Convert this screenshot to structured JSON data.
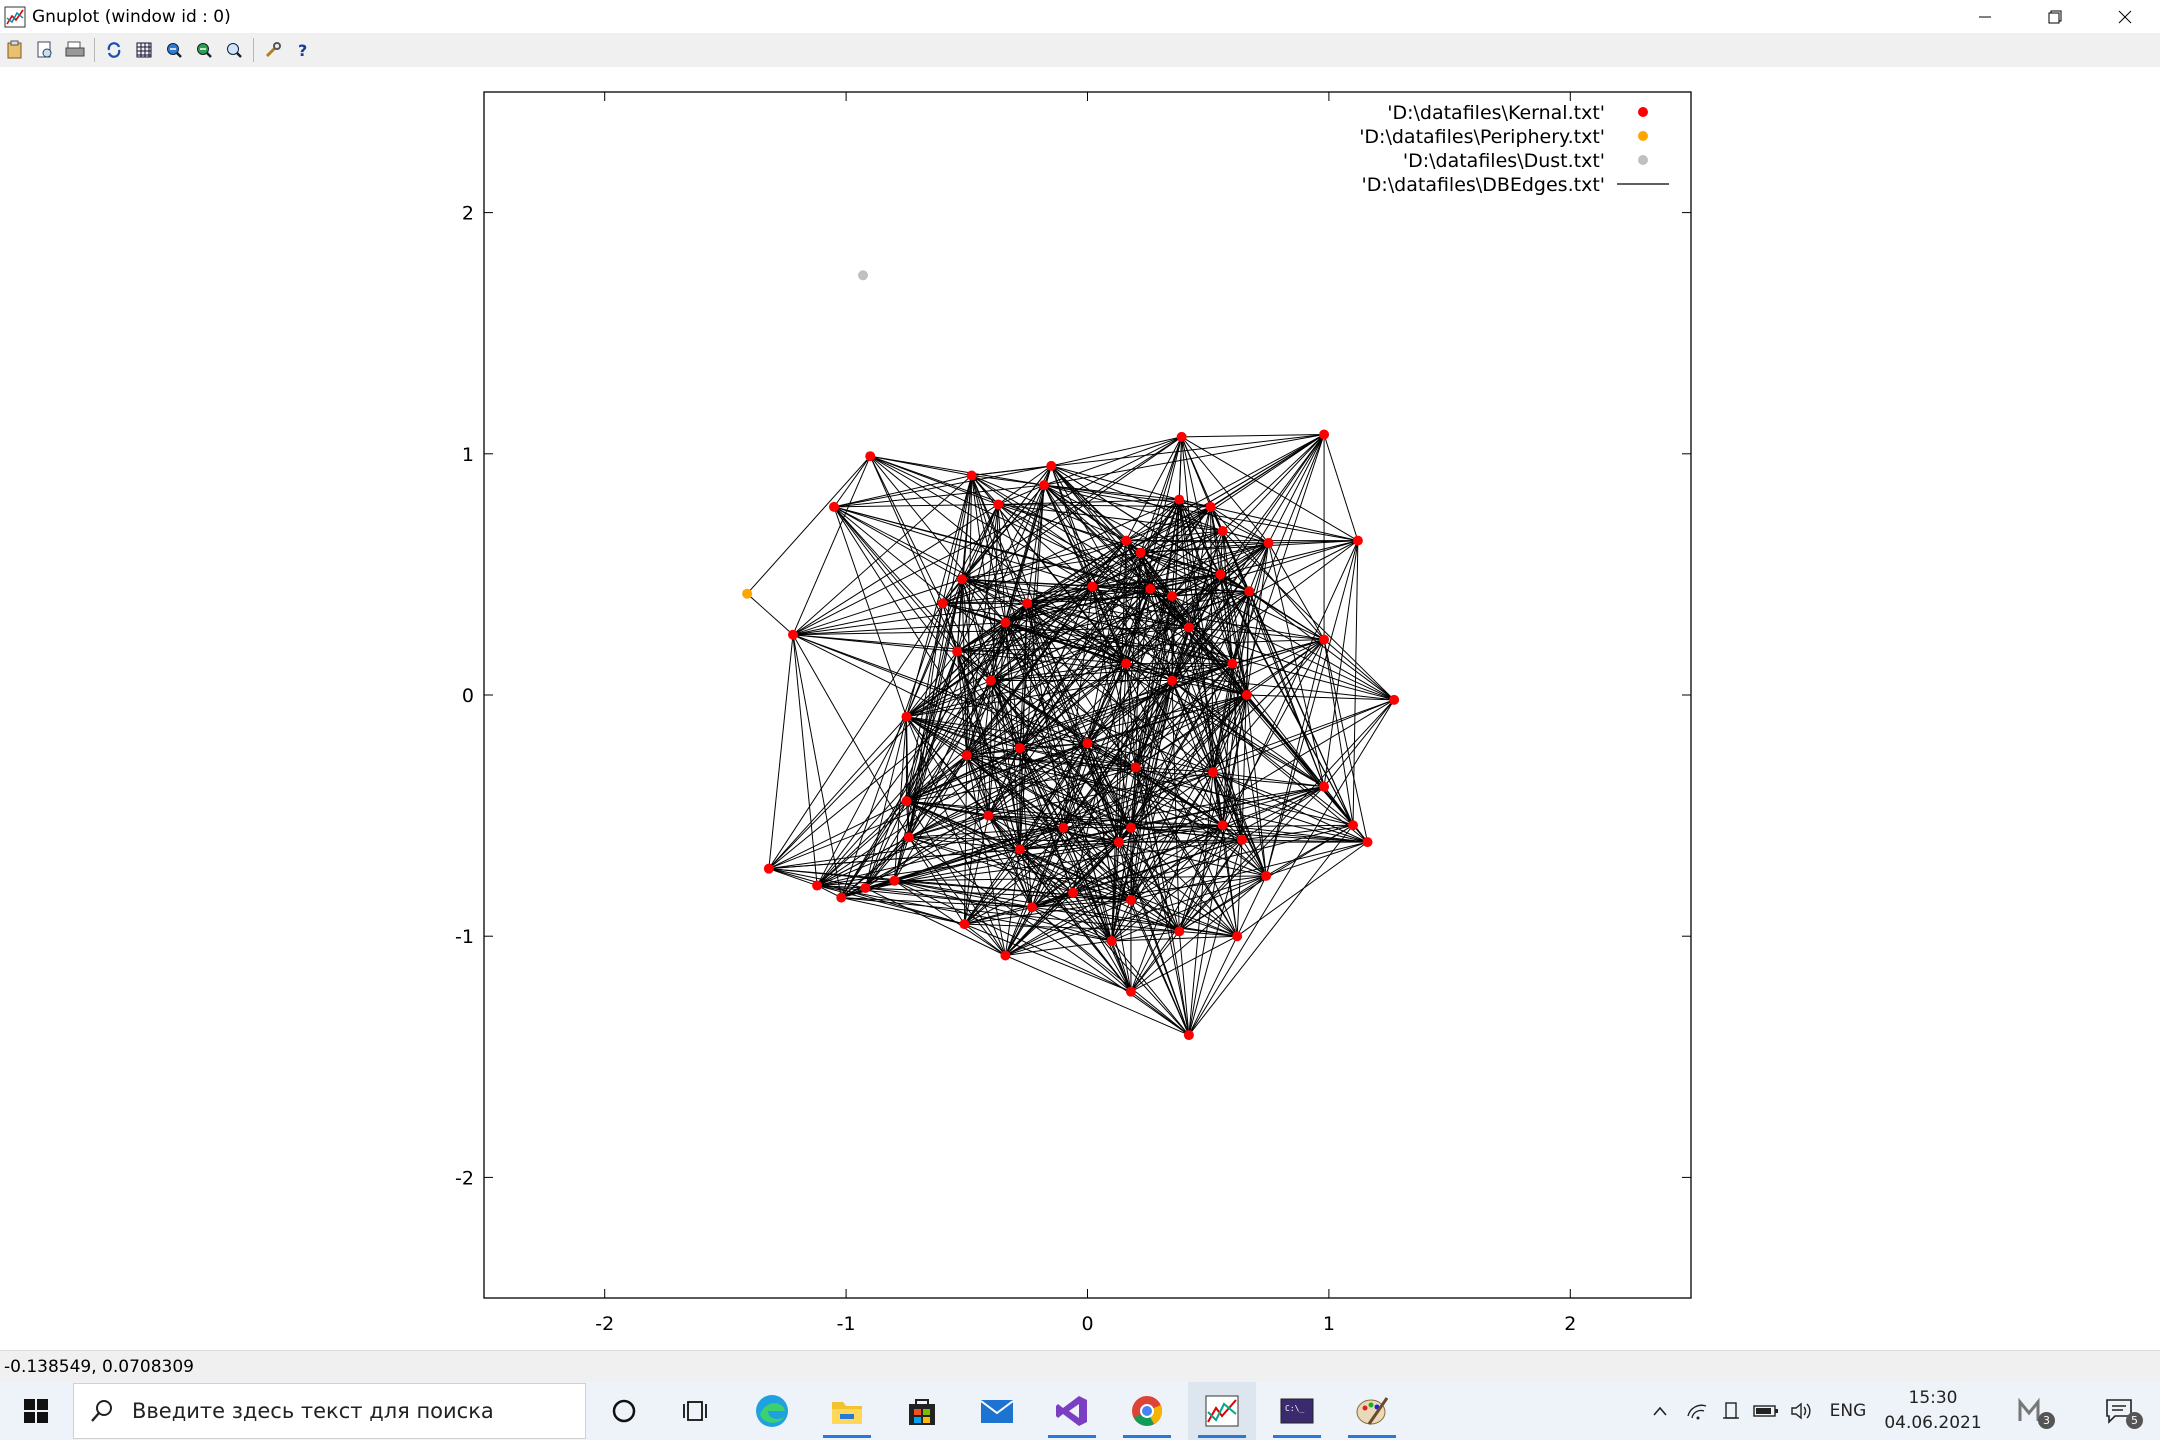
{
  "window": {
    "title": "Gnuplot (window id : 0)",
    "buttons": [
      "minimize",
      "restore",
      "close"
    ]
  },
  "toolbar": {
    "icons": [
      "copy-icon",
      "print-preview-icon",
      "print-icon",
      "replot-icon",
      "grid-icon",
      "zoom-previous-icon",
      "zoom-next-icon",
      "unzoom-icon",
      "options-icon",
      "help-icon"
    ]
  },
  "status": {
    "coordinates": "-0.138549,  0.0708309"
  },
  "chart_data": {
    "type": "scatter",
    "xlim": [
      -2.5,
      2.5
    ],
    "ylim": [
      -2.5,
      2.5
    ],
    "x_ticks": [
      "-2",
      "-1",
      "0",
      "1",
      "2"
    ],
    "y_ticks": [
      "2",
      "1",
      "0",
      "-1",
      "-2"
    ],
    "x_tick_values": [
      -2,
      -1,
      0,
      1,
      2
    ],
    "y_tick_values": [
      2,
      1,
      0,
      -1,
      -2
    ],
    "grid": false,
    "legend_position": "top-right",
    "series": [
      {
        "name": "'D:\\datafiles\\Kernal.txt'",
        "color": "#ff0000",
        "kind": "points",
        "points": [
          [
            -0.9,
            0.99
          ],
          [
            -0.48,
            0.91
          ],
          [
            -0.15,
            0.95
          ],
          [
            -0.18,
            0.87
          ],
          [
            -0.37,
            0.79
          ],
          [
            0.39,
            1.07
          ],
          [
            0.98,
            1.08
          ],
          [
            -1.05,
            0.78
          ],
          [
            0.38,
            0.81
          ],
          [
            0.51,
            0.78
          ],
          [
            0.56,
            0.68
          ],
          [
            0.75,
            0.63
          ],
          [
            1.12,
            0.64
          ],
          [
            0.16,
            0.64
          ],
          [
            0.22,
            0.59
          ],
          [
            0.55,
            0.5
          ],
          [
            0.67,
            0.43
          ],
          [
            -0.52,
            0.48
          ],
          [
            -0.6,
            0.38
          ],
          [
            -0.25,
            0.38
          ],
          [
            -0.34,
            0.3
          ],
          [
            0.02,
            0.45
          ],
          [
            0.26,
            0.44
          ],
          [
            0.35,
            0.41
          ],
          [
            0.98,
            0.23
          ],
          [
            -1.22,
            0.25
          ],
          [
            -0.54,
            0.18
          ],
          [
            -0.4,
            0.06
          ],
          [
            0.16,
            0.13
          ],
          [
            0.42,
            0.28
          ],
          [
            0.6,
            0.13
          ],
          [
            0.35,
            0.06
          ],
          [
            0.66,
            0.0
          ],
          [
            1.27,
            -0.02
          ],
          [
            -0.75,
            -0.09
          ],
          [
            -0.5,
            -0.25
          ],
          [
            -0.28,
            -0.22
          ],
          [
            0.0,
            -0.2
          ],
          [
            0.2,
            -0.3
          ],
          [
            0.52,
            -0.32
          ],
          [
            0.98,
            -0.38
          ],
          [
            -0.75,
            -0.44
          ],
          [
            -0.41,
            -0.5
          ],
          [
            -0.1,
            -0.55
          ],
          [
            0.18,
            -0.55
          ],
          [
            0.56,
            -0.54
          ],
          [
            1.1,
            -0.54
          ],
          [
            1.16,
            -0.61
          ],
          [
            -0.74,
            -0.59
          ],
          [
            -0.28,
            -0.64
          ],
          [
            0.13,
            -0.61
          ],
          [
            0.64,
            -0.6
          ],
          [
            -1.32,
            -0.72
          ],
          [
            -1.12,
            -0.79
          ],
          [
            -1.02,
            -0.84
          ],
          [
            -0.92,
            -0.8
          ],
          [
            -0.8,
            -0.77
          ],
          [
            -0.51,
            -0.95
          ],
          [
            -0.23,
            -0.88
          ],
          [
            -0.06,
            -0.82
          ],
          [
            0.18,
            -0.85
          ],
          [
            0.38,
            -0.98
          ],
          [
            0.62,
            -1.0
          ],
          [
            0.74,
            -0.75
          ],
          [
            -0.34,
            -1.08
          ],
          [
            0.1,
            -1.02
          ],
          [
            0.18,
            -1.23
          ],
          [
            0.42,
            -1.41
          ]
        ]
      },
      {
        "name": "'D:\\datafiles\\Periphery.txt'",
        "color": "#ffa500",
        "kind": "points",
        "points": [
          [
            -1.41,
            0.42
          ]
        ]
      },
      {
        "name": "'D:\\datafiles\\Dust.txt'",
        "color": "#c0c0c0",
        "kind": "points",
        "points": [
          [
            -0.93,
            1.74
          ]
        ]
      },
      {
        "name": "'D:\\datafiles\\DBEdges.txt'",
        "color": "#000000",
        "kind": "lines"
      }
    ]
  },
  "taskbar": {
    "search_placeholder": "Введите здесь текст для поиска",
    "apps": [
      "cortana-circle-icon",
      "task-view-icon",
      "edge-icon",
      "file-explorer-icon",
      "store-icon",
      "mail-icon",
      "visual-studio-icon",
      "chrome-icon",
      "gnuplot-icon",
      "terminal-icon",
      "paint-icon"
    ],
    "language": "ENG",
    "time": "15:30",
    "date": "04.06.2021",
    "notification_count": "5",
    "app_badge_count": "3"
  }
}
